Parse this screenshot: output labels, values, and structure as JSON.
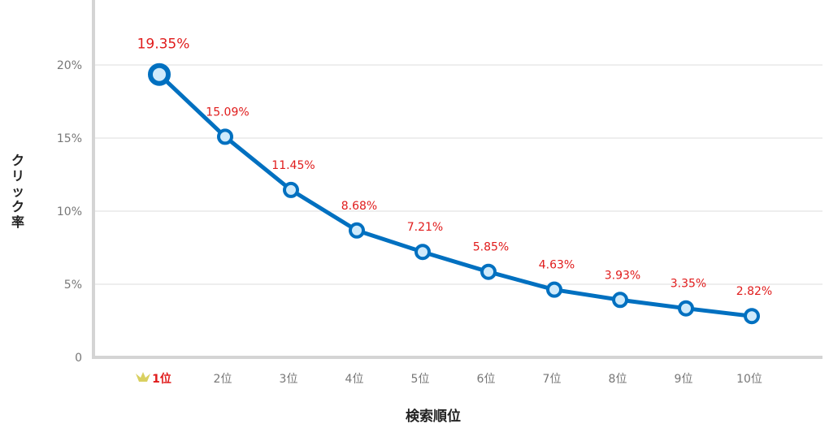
{
  "chart_data": {
    "type": "line",
    "title": "",
    "xlabel": "検索順位",
    "ylabel": "クリック率",
    "categories": [
      "1位",
      "2位",
      "3位",
      "4位",
      "5位",
      "6位",
      "7位",
      "8位",
      "9位",
      "10位"
    ],
    "series": [
      {
        "values": [
          19.35,
          15.09,
          11.45,
          8.68,
          7.21,
          5.85,
          4.63,
          3.93,
          3.35,
          2.82
        ]
      }
    ],
    "data_labels": [
      "19.35%",
      "15.09%",
      "11.45%",
      "8.68%",
      "7.21%",
      "5.85%",
      "4.63%",
      "3.93%",
      "3.35%",
      "2.82%"
    ],
    "y_ticks": [
      {
        "value": 0,
        "label": "0"
      },
      {
        "value": 5,
        "label": "5%"
      },
      {
        "value": 10,
        "label": "10%"
      },
      {
        "value": 15,
        "label": "15%"
      },
      {
        "value": 20,
        "label": "20%"
      }
    ],
    "ylim": [
      0,
      24
    ],
    "grid": true,
    "highlight_category_icon": "crown-icon",
    "colors": {
      "line": "#0070c0",
      "marker_fill": "#cfeafb",
      "data_label": "#e01b1b",
      "highlight_label": "#e01b1b",
      "crown": "#d9d060",
      "grid": "#dddddd",
      "axis": "#d4d4d4",
      "tick_label": "#777777"
    }
  }
}
